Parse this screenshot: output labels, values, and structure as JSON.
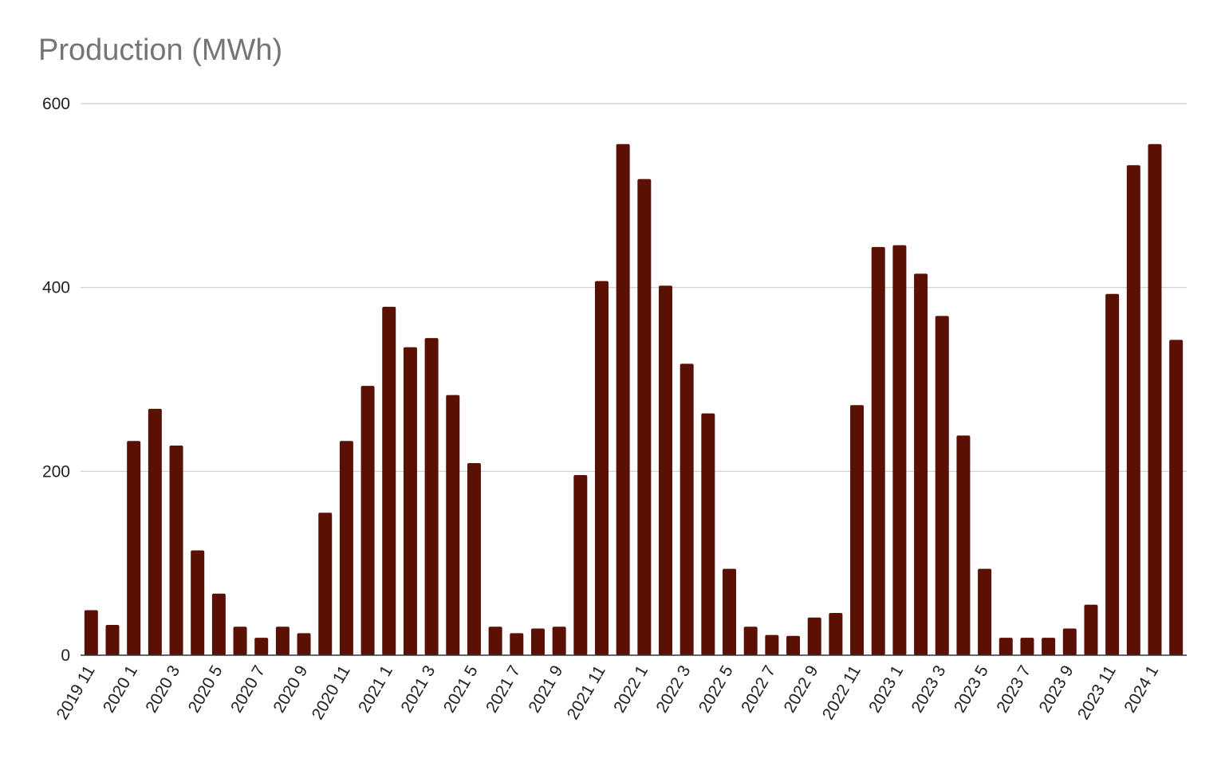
{
  "chart_data": {
    "type": "bar",
    "title": "Production (MWh)",
    "xlabel": "",
    "ylabel": "",
    "ylim": [
      0,
      600
    ],
    "yticks": [
      "0",
      "200",
      "400",
      "600"
    ],
    "grid": true,
    "legend": "none",
    "bar_color": "#5a1002",
    "categories": [
      "2019 11",
      "2019 12",
      "2020 1",
      "2020 2",
      "2020 3",
      "2020 4",
      "2020 5",
      "2020 6",
      "2020 7",
      "2020 8",
      "2020 9",
      "2020 10",
      "2020 11",
      "2020 12",
      "2021 1",
      "2021 2",
      "2021 3",
      "2021 4",
      "2021 5",
      "2021 6",
      "2021 7",
      "2021 8",
      "2021 9",
      "2021 10",
      "2021 11",
      "2021 12",
      "2022 1",
      "2022 2",
      "2022 3",
      "2022 4",
      "2022 5",
      "2022 6",
      "2022 7",
      "2022 8",
      "2022 9",
      "2022 10",
      "2022 11",
      "2022 12",
      "2023 1",
      "2023 2",
      "2023 3",
      "2023 4",
      "2023 5",
      "2023 6",
      "2023 7",
      "2023 8",
      "2023 9",
      "2023 10",
      "2023 11",
      "2023 12",
      "2024 1",
      "2024 2"
    ],
    "values": [
      49,
      33,
      233,
      268,
      228,
      114,
      67,
      31,
      19,
      31,
      24,
      155,
      233,
      293,
      379,
      335,
      345,
      283,
      209,
      31,
      24,
      29,
      31,
      196,
      407,
      556,
      518,
      402,
      317,
      263,
      94,
      31,
      22,
      21,
      41,
      46,
      272,
      444,
      446,
      415,
      369,
      239,
      94,
      19,
      19,
      19,
      29,
      55,
      393,
      533,
      556,
      343
    ],
    "shown_x_labels": [
      "2019 11",
      "2020 1",
      "2020 3",
      "2020 5",
      "2020 7",
      "2020 9",
      "2020 11",
      "2021 1",
      "2021 3",
      "2021 5",
      "2021 7",
      "2021 9",
      "2021 11",
      "2022 1",
      "2022 3",
      "2022 5",
      "2022 7",
      "2022 9",
      "2022 11",
      "2023 1",
      "2023 3",
      "2023 5",
      "2023 7",
      "2023 9",
      "2023 11",
      "2024 1"
    ]
  }
}
